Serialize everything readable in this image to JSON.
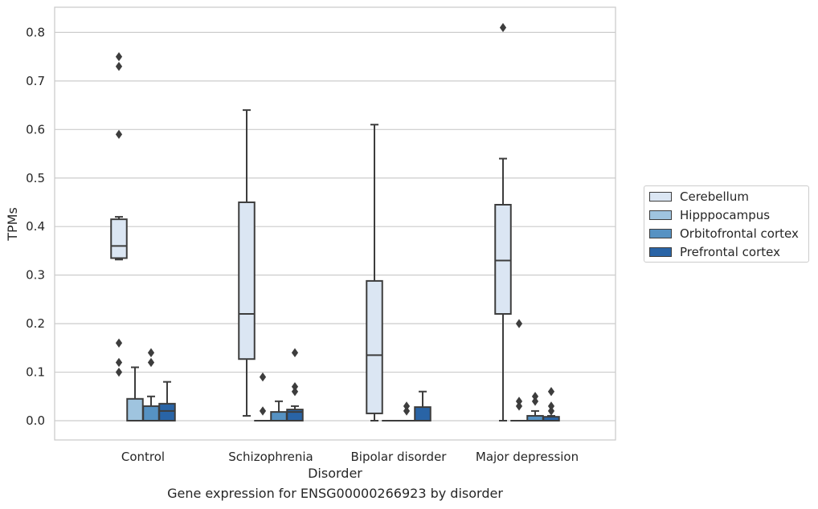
{
  "caption": "Gene expression for ENSG00000266923 by disorder",
  "chart_data": {
    "type": "box",
    "title": "",
    "xlabel": "Disorder",
    "ylabel": "TPMs",
    "ylim": [
      -0.04,
      0.85
    ],
    "yticks": [
      "0.0",
      "0.1",
      "0.2",
      "0.3",
      "0.4",
      "0.5",
      "0.6",
      "0.7",
      "0.8"
    ],
    "ytick_values": [
      0,
      0.1,
      0.2,
      0.3,
      0.4,
      0.5,
      0.6,
      0.7,
      0.8
    ],
    "grid": true,
    "legend_position": "right",
    "categories": [
      "Control",
      "Schizophrenia",
      "Bipolar disorder",
      "Major depression"
    ],
    "series": [
      {
        "name": "Cerebellum",
        "color": "#dbe6f3",
        "boxes": [
          {
            "q1": 0.335,
            "median": 0.36,
            "q3": 0.415,
            "whislo": 0.332,
            "whishi": 0.42,
            "fliers": [
              0.75,
              0.73,
              0.59,
              0.16,
              0.12,
              0.1
            ]
          },
          {
            "q1": 0.127,
            "median": 0.22,
            "q3": 0.45,
            "whislo": 0.01,
            "whishi": 0.64,
            "fliers": []
          },
          {
            "q1": 0.015,
            "median": 0.135,
            "q3": 0.288,
            "whislo": 0.0,
            "whishi": 0.61,
            "fliers": []
          },
          {
            "q1": 0.22,
            "median": 0.33,
            "q3": 0.445,
            "whislo": 0.0,
            "whishi": 0.54,
            "fliers": [
              0.81
            ]
          }
        ]
      },
      {
        "name": "Hipppocampus",
        "color": "#9fc4df",
        "boxes": [
          {
            "q1": 0.0,
            "median": 0.0,
            "q3": 0.045,
            "whislo": 0.0,
            "whishi": 0.11,
            "fliers": []
          },
          {
            "q1": 0.0,
            "median": 0.0,
            "q3": 0.0,
            "whislo": 0.0,
            "whishi": 0.0,
            "fliers": [
              0.09,
              0.02
            ]
          },
          {
            "q1": 0.0,
            "median": 0.0,
            "q3": 0.0,
            "whislo": 0.0,
            "whishi": 0.0,
            "fliers": []
          },
          {
            "q1": 0.0,
            "median": 0.0,
            "q3": 0.0,
            "whislo": 0.0,
            "whishi": 0.0,
            "fliers": [
              0.2,
              0.04,
              0.03
            ]
          }
        ]
      },
      {
        "name": "Orbitofrontal cortex",
        "color": "#5692c3",
        "boxes": [
          {
            "q1": 0.0,
            "median": 0.0,
            "q3": 0.03,
            "whislo": 0.0,
            "whishi": 0.05,
            "fliers": [
              0.14,
              0.12
            ]
          },
          {
            "q1": 0.0,
            "median": 0.0,
            "q3": 0.018,
            "whislo": 0.0,
            "whishi": 0.04,
            "fliers": []
          },
          {
            "q1": 0.0,
            "median": 0.0,
            "q3": 0.0,
            "whislo": 0.0,
            "whishi": 0.0,
            "fliers": [
              0.03,
              0.02
            ]
          },
          {
            "q1": 0.0,
            "median": 0.0,
            "q3": 0.01,
            "whislo": 0.0,
            "whishi": 0.02,
            "fliers": [
              0.05,
              0.04
            ]
          }
        ]
      },
      {
        "name": "Prefrontal cortex",
        "color": "#2964a6",
        "boxes": [
          {
            "q1": 0.0,
            "median": 0.02,
            "q3": 0.035,
            "whislo": 0.0,
            "whishi": 0.08,
            "fliers": []
          },
          {
            "q1": 0.0,
            "median": 0.018,
            "q3": 0.023,
            "whislo": 0.0,
            "whishi": 0.03,
            "fliers": [
              0.14,
              0.07,
              0.06
            ]
          },
          {
            "q1": 0.0,
            "median": 0.0,
            "q3": 0.028,
            "whislo": 0.0,
            "whishi": 0.06,
            "fliers": []
          },
          {
            "q1": 0.0,
            "median": 0.0,
            "q3": 0.008,
            "whislo": 0.0,
            "whishi": 0.01,
            "fliers": [
              0.06,
              0.03,
              0.02
            ]
          }
        ]
      }
    ]
  }
}
